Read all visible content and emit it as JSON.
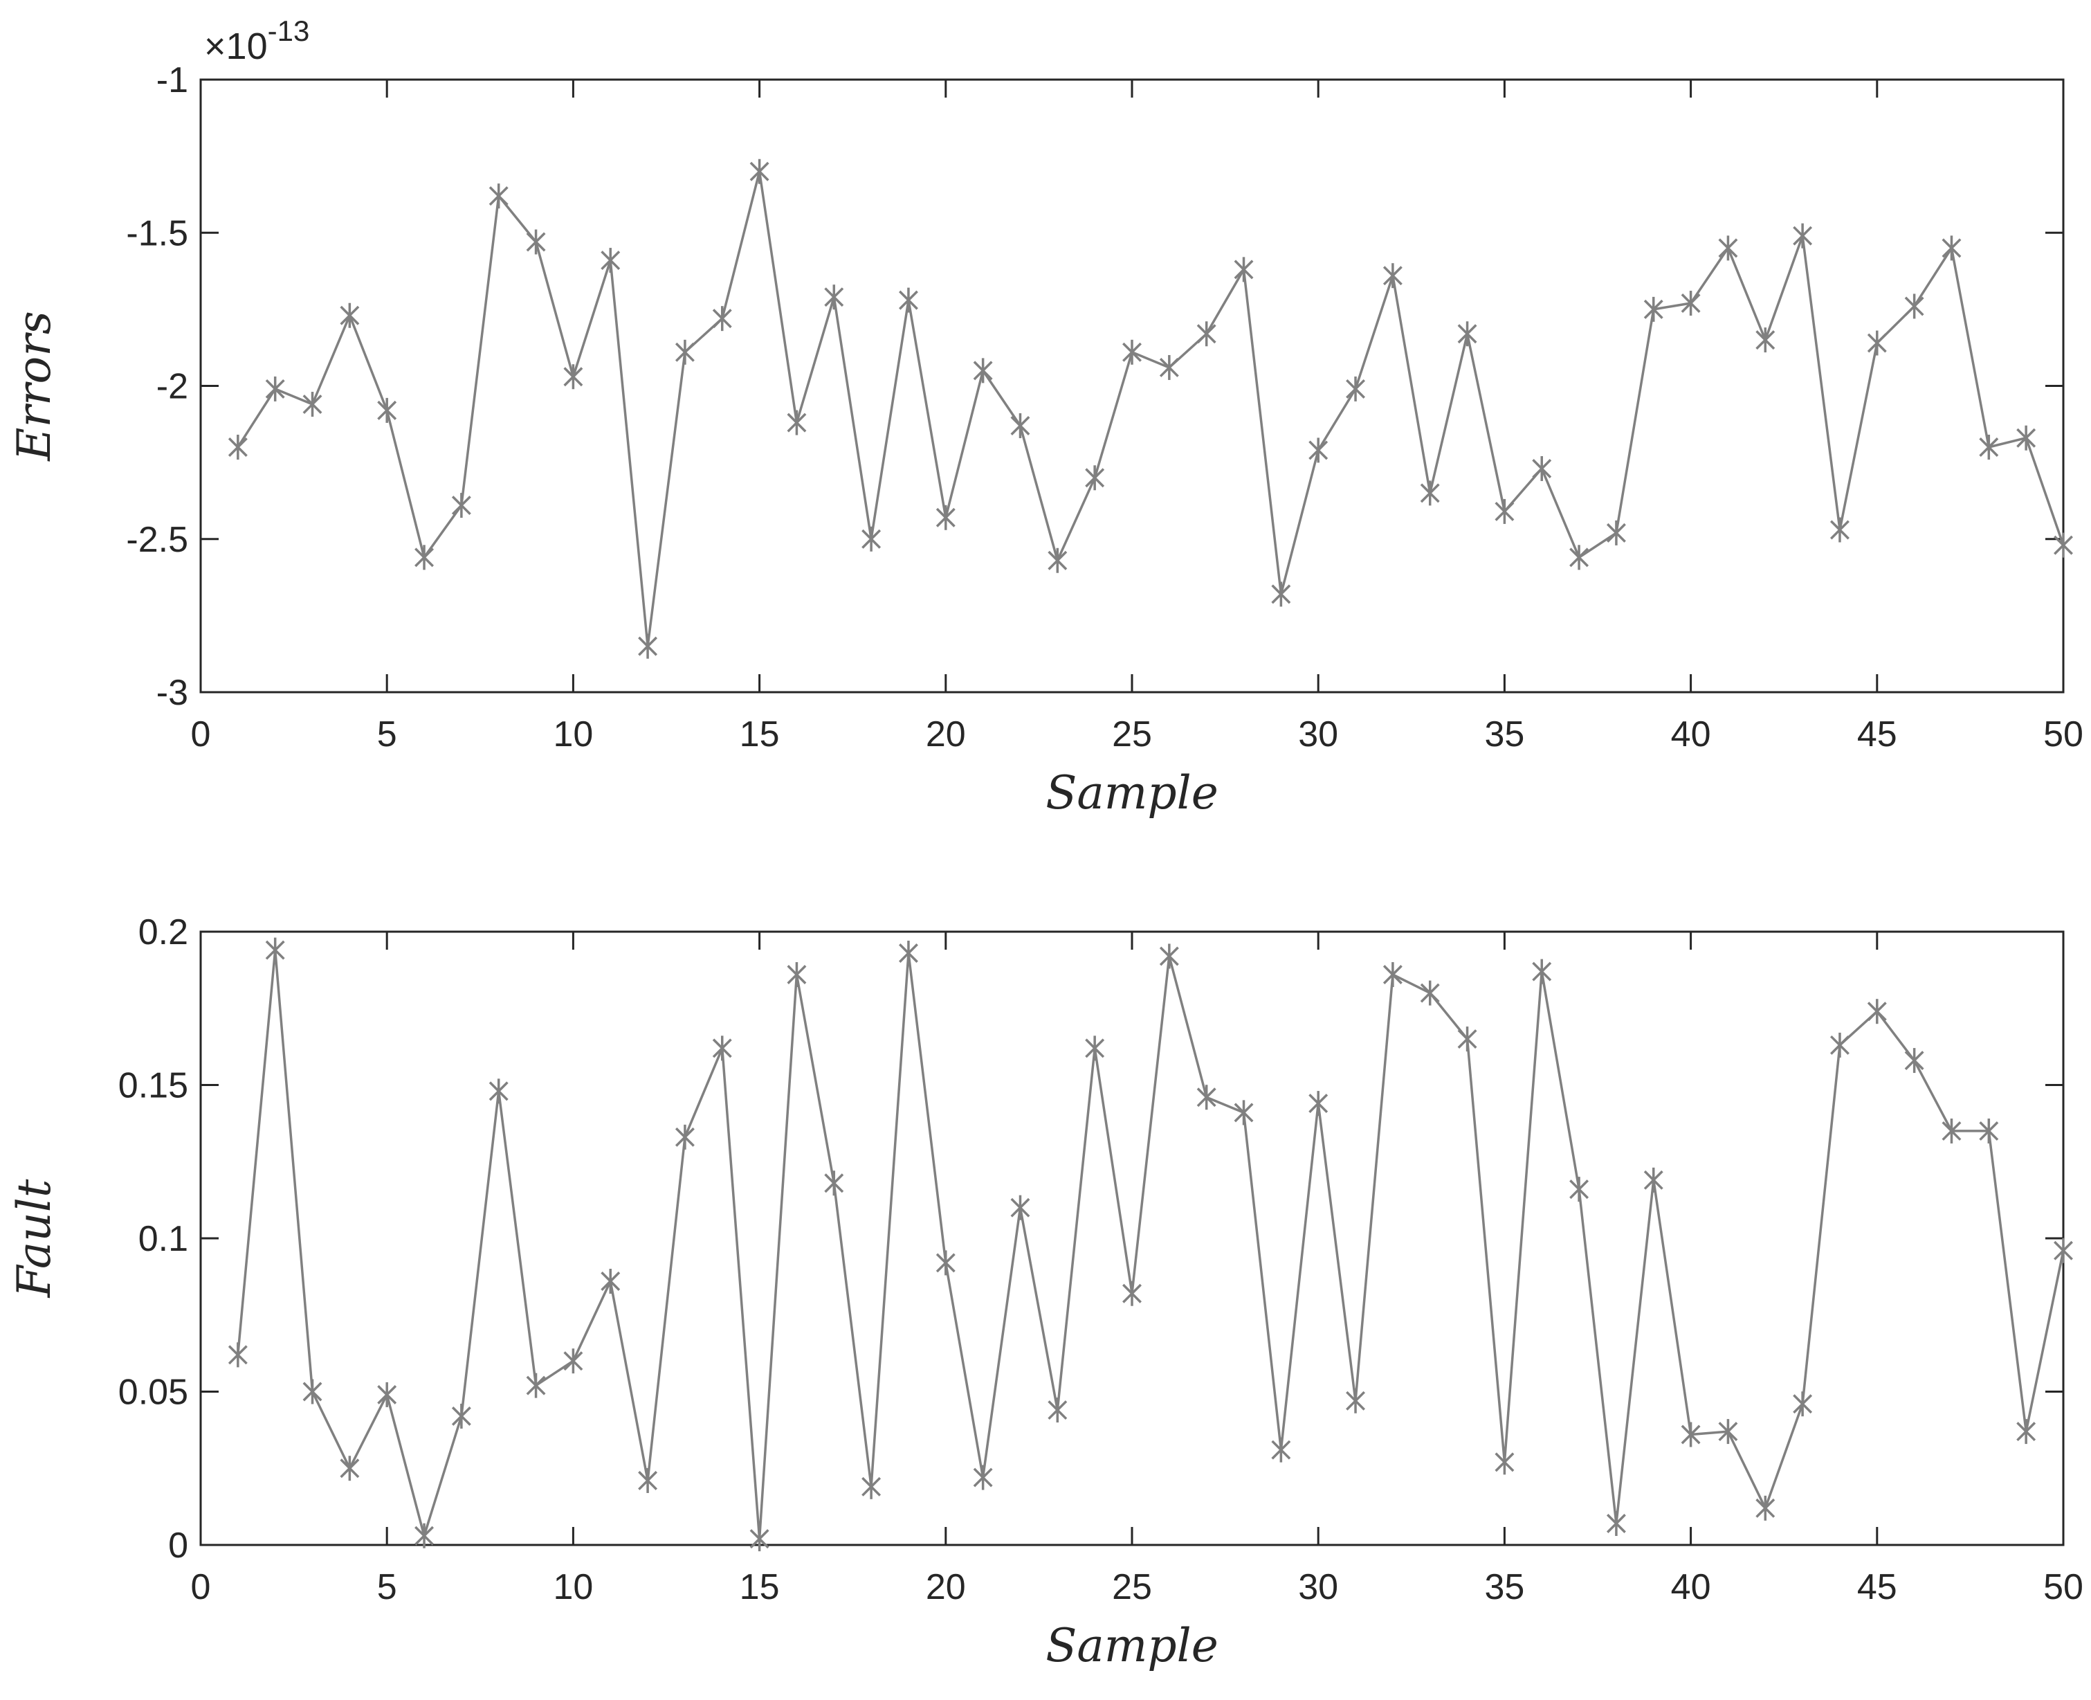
{
  "colors": {
    "series": "#808080",
    "axes": "#262626",
    "background": "#ffffff"
  },
  "chart_data": [
    {
      "type": "line",
      "marker": "asterisk",
      "xlabel": "Sample",
      "ylabel": "Errors",
      "xlim": [
        0,
        50
      ],
      "ylim": [
        -3,
        -1
      ],
      "xticks": [
        0,
        5,
        10,
        15,
        20,
        25,
        30,
        35,
        40,
        45,
        50
      ],
      "xtick_labels": [
        "0",
        "5",
        "10",
        "15",
        "20",
        "25",
        "30",
        "35",
        "40",
        "45",
        "50"
      ],
      "yticks": [
        -1,
        -1.5,
        -2,
        -2.5,
        -3
      ],
      "ytick_labels": [
        "-1",
        "-1.5",
        "-2",
        "-2.5",
        "-3"
      ],
      "exponent_base": "×10",
      "exponent_power": "-13",
      "grid": false,
      "x": [
        1,
        2,
        3,
        4,
        5,
        6,
        7,
        8,
        9,
        10,
        11,
        12,
        13,
        14,
        15,
        16,
        17,
        18,
        19,
        20,
        21,
        22,
        23,
        24,
        25,
        26,
        27,
        28,
        29,
        30,
        31,
        32,
        33,
        34,
        35,
        36,
        37,
        38,
        39,
        40,
        41,
        42,
        43,
        44,
        45,
        46,
        47,
        48,
        49,
        50
      ],
      "y": [
        -2.2,
        -2.01,
        -2.06,
        -1.77,
        -2.08,
        -2.56,
        -2.39,
        -1.38,
        -1.53,
        -1.97,
        -1.59,
        -2.85,
        -1.89,
        -1.78,
        -1.3,
        -2.12,
        -1.71,
        -2.5,
        -1.72,
        -2.43,
        -1.95,
        -2.13,
        -2.57,
        -2.3,
        -1.89,
        -1.94,
        -1.83,
        -1.62,
        -2.68,
        -2.21,
        -2.01,
        -1.64,
        -2.35,
        -1.83,
        -2.41,
        -2.27,
        -2.56,
        -2.48,
        -1.75,
        -1.73,
        -1.55,
        -1.85,
        -1.51,
        -2.47,
        -1.86,
        -1.74,
        -1.55,
        -2.2,
        -2.17,
        -2.52
      ]
    },
    {
      "type": "line",
      "marker": "asterisk",
      "xlabel": "Sample",
      "ylabel": "Fault",
      "xlim": [
        0,
        50
      ],
      "ylim": [
        0,
        0.2
      ],
      "xticks": [
        0,
        5,
        10,
        15,
        20,
        25,
        30,
        35,
        40,
        45,
        50
      ],
      "xtick_labels": [
        "0",
        "5",
        "10",
        "15",
        "20",
        "25",
        "30",
        "35",
        "40",
        "45",
        "50"
      ],
      "yticks": [
        0.2,
        0.15,
        0.1,
        0.05,
        0
      ],
      "ytick_labels": [
        "0.2",
        "0.15",
        "0.1",
        "0.05",
        "0"
      ],
      "grid": false,
      "x": [
        1,
        2,
        3,
        4,
        5,
        6,
        7,
        8,
        9,
        10,
        11,
        12,
        13,
        14,
        15,
        16,
        17,
        18,
        19,
        20,
        21,
        22,
        23,
        24,
        25,
        26,
        27,
        28,
        29,
        30,
        31,
        32,
        33,
        34,
        35,
        36,
        37,
        38,
        39,
        40,
        41,
        42,
        43,
        44,
        45,
        46,
        47,
        48,
        49,
        50
      ],
      "y": [
        0.062,
        0.194,
        0.05,
        0.025,
        0.049,
        0.003,
        0.042,
        0.148,
        0.052,
        0.06,
        0.086,
        0.021,
        0.133,
        0.162,
        0.002,
        0.186,
        0.118,
        0.019,
        0.193,
        0.092,
        0.022,
        0.11,
        0.044,
        0.162,
        0.082,
        0.192,
        0.146,
        0.141,
        0.031,
        0.144,
        0.047,
        0.186,
        0.18,
        0.165,
        0.027,
        0.187,
        0.116,
        0.007,
        0.119,
        0.036,
        0.037,
        0.012,
        0.046,
        0.163,
        0.174,
        0.158,
        0.135,
        0.135,
        0.037,
        0.096
      ]
    }
  ]
}
